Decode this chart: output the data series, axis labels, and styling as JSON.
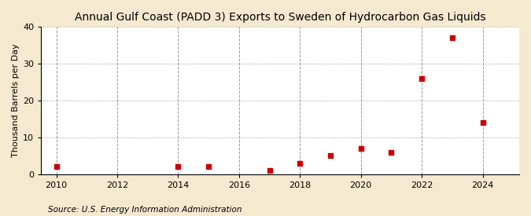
{
  "title": "Annual Gulf Coast (PADD 3) Exports to Sweden of Hydrocarbon Gas Liquids",
  "ylabel": "Thousand Barrels per Day",
  "source": "Source: U.S. Energy Information Administration",
  "years": [
    2010,
    2014,
    2015,
    2017,
    2018,
    2019,
    2020,
    2021,
    2022,
    2023,
    2024
  ],
  "values": [
    2,
    2,
    2,
    1,
    3,
    5,
    7,
    6,
    26,
    37,
    14
  ],
  "xlim": [
    2009.5,
    2025.2
  ],
  "ylim": [
    0,
    40
  ],
  "yticks": [
    0,
    10,
    20,
    30,
    40
  ],
  "xticks": [
    2010,
    2012,
    2014,
    2016,
    2018,
    2020,
    2022,
    2024
  ],
  "marker_color": "#cc0000",
  "marker": "s",
  "marker_size": 4,
  "fig_bg_color": "#f5e9d0",
  "plot_bg_color": "#ffffff",
  "grid_color": "#999999",
  "title_fontsize": 10,
  "label_fontsize": 8,
  "tick_fontsize": 8,
  "source_fontsize": 7.5
}
